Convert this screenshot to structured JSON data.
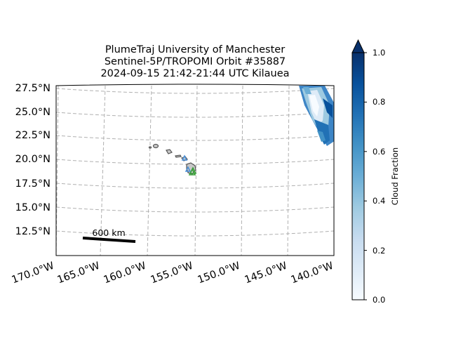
{
  "title": {
    "line1": "PlumeTraj    University of Manchester",
    "line2": "Sentinel-5P/TROPOMI Orbit #35887",
    "line3": "2024-09-15   21:42-21:44 UTC   Kilauea"
  },
  "map": {
    "lat_ticks": [
      "27.5°N",
      "25.0°N",
      "22.5°N",
      "20.0°N",
      "17.5°N",
      "15.0°N",
      "12.5°N"
    ],
    "lon_ticks": [
      "170.0°W",
      "165.0°W",
      "160.0°W",
      "155.0°W",
      "150.0°W",
      "145.0°W",
      "140.0°W"
    ],
    "gridlines": true,
    "scale_bar_label": "600 km",
    "volcano": "Kilauea",
    "colors": {
      "gridline": "#b0b0b0",
      "coastline": "#555555",
      "land": "#c8c8c8",
      "marker_blue": "#4a90d9",
      "marker_green": "#3aa03a"
    }
  },
  "colorbar": {
    "label": "Cloud Fraction",
    "ticks": [
      "0.0",
      "0.2",
      "0.4",
      "0.6",
      "0.8",
      "1.0"
    ],
    "range": [
      0.0,
      1.0
    ],
    "extend": "max",
    "colormap": "Blues",
    "colors": [
      "#f7fbff",
      "#deebf7",
      "#c6dbef",
      "#9ecae1",
      "#6baed6",
      "#4292c6",
      "#2171b5",
      "#08519c",
      "#08306b"
    ]
  }
}
